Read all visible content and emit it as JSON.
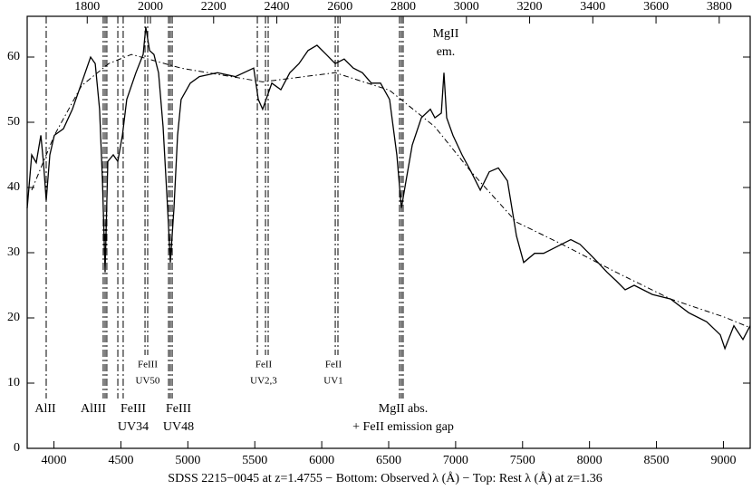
{
  "chart_data": {
    "type": "line",
    "title": "SDSS 2215−0045 at z=1.4755 − Bottom: Observed λ (Å) − Top: Rest λ (Å) at z=1.36",
    "xlim": [
      3800,
      9200
    ],
    "xticks": [
      4000,
      4500,
      5000,
      5500,
      6000,
      6500,
      7000,
      7500,
      8000,
      8500,
      9000
    ],
    "x2lim": [
      1610,
      3898
    ],
    "x2ticks": [
      1800,
      2000,
      2200,
      2400,
      2600,
      2800,
      3000,
      3200,
      3400,
      3600,
      3800
    ],
    "ylim": [
      0,
      66.25
    ],
    "yticks": [
      0,
      10,
      20,
      30,
      40,
      50,
      60
    ],
    "series": [
      {
        "color": "#000000",
        "style": "solid",
        "x": [
          3800,
          3834,
          3868,
          3902,
          3922,
          3942,
          3969,
          4003,
          4071,
          4138,
          4206,
          4274,
          4308,
          4341,
          4362,
          4382,
          4402,
          4443,
          4477,
          4511,
          4544,
          4612,
          4666,
          4686,
          4714,
          4747,
          4781,
          4815,
          4849,
          4869,
          4896,
          4923,
          4950,
          5018,
          5086,
          5221,
          5356,
          5492,
          5526,
          5559,
          5627,
          5695,
          5762,
          5830,
          5898,
          5965,
          6033,
          6101,
          6168,
          6236,
          6304,
          6371,
          6439,
          6507,
          6561,
          6595,
          6629,
          6676,
          6744,
          6811,
          6845,
          6893,
          6913,
          6933,
          6980,
          7048,
          7116,
          7184,
          7251,
          7319,
          7387,
          7454,
          7508,
          7590,
          7657,
          7725,
          7793,
          7860,
          7928,
          7996,
          8063,
          8131,
          8199,
          8266,
          8334,
          8469,
          8605,
          8740,
          8875,
          8977,
          9011,
          9078,
          9146,
          9200
        ],
        "values": [
          36.8,
          45,
          43.8,
          48,
          43.8,
          38,
          45,
          48,
          49,
          52,
          56,
          60,
          59,
          52,
          41,
          27,
          44,
          45,
          44,
          48,
          53.5,
          57.6,
          60.4,
          64.6,
          61,
          60.4,
          57.6,
          49.3,
          36.8,
          28.5,
          36.8,
          48,
          53.5,
          56,
          57,
          57.6,
          57,
          58.3,
          53.5,
          52,
          56,
          55,
          57.6,
          59,
          61,
          61.8,
          60.4,
          59,
          59.7,
          58.3,
          57.6,
          56,
          56,
          53.5,
          45,
          36.8,
          41,
          46.5,
          50.7,
          52,
          50.7,
          51.4,
          57.6,
          50.7,
          48,
          45,
          42.4,
          39.6,
          42.4,
          43,
          41,
          32.6,
          28.5,
          29.9,
          29.9,
          30.6,
          31.3,
          32,
          31.3,
          29.9,
          28.5,
          27,
          25.7,
          24.3,
          25,
          23.6,
          22.9,
          20.8,
          19.4,
          17.4,
          15.3,
          18.8,
          16.7,
          18.8
        ]
      },
      {
        "color": "#000000",
        "style": "dashdot",
        "x": [
          3834,
          4003,
          4206,
          4409,
          4579,
          4950,
          5559,
          6101,
          6507,
          6845,
          7116,
          7454,
          7793,
          8199,
          8605,
          9011,
          9200
        ],
        "values": [
          39.6,
          48,
          55.6,
          59,
          60.4,
          58.3,
          56.2,
          57.6,
          54.9,
          49.3,
          42.4,
          34.7,
          31.3,
          27,
          22.9,
          20.1,
          18.5
        ]
      }
    ],
    "markers": [
      {
        "x": [
          3942
        ],
        "label": [
          "AlII"
        ]
      },
      {
        "x": [
          4368,
          4382,
          4395
        ],
        "label": [
          "AlIII"
        ]
      },
      {
        "x": [
          4477,
          4517
        ],
        "label": [
          "FeIII",
          "UV34"
        ]
      },
      {
        "x": [
          4680,
          4700
        ],
        "label": [
          "FeIII",
          "UV50"
        ]
      },
      {
        "x": [
          4856,
          4869,
          4883
        ],
        "label": [
          "FeIII",
          "UV48"
        ]
      },
      {
        "x": [
          5519,
          5580,
          5600
        ],
        "label": [
          "FeII",
          "UV2,3"
        ]
      },
      {
        "x": [
          6101,
          6121
        ],
        "label": [
          "FeII",
          "UV1"
        ]
      },
      {
        "x": [
          6581,
          6595,
          6608
        ],
        "label": [
          "MgII abs.",
          "+ FeII emission gap"
        ]
      }
    ],
    "annotation": [
      "MgII",
      "em."
    ]
  }
}
